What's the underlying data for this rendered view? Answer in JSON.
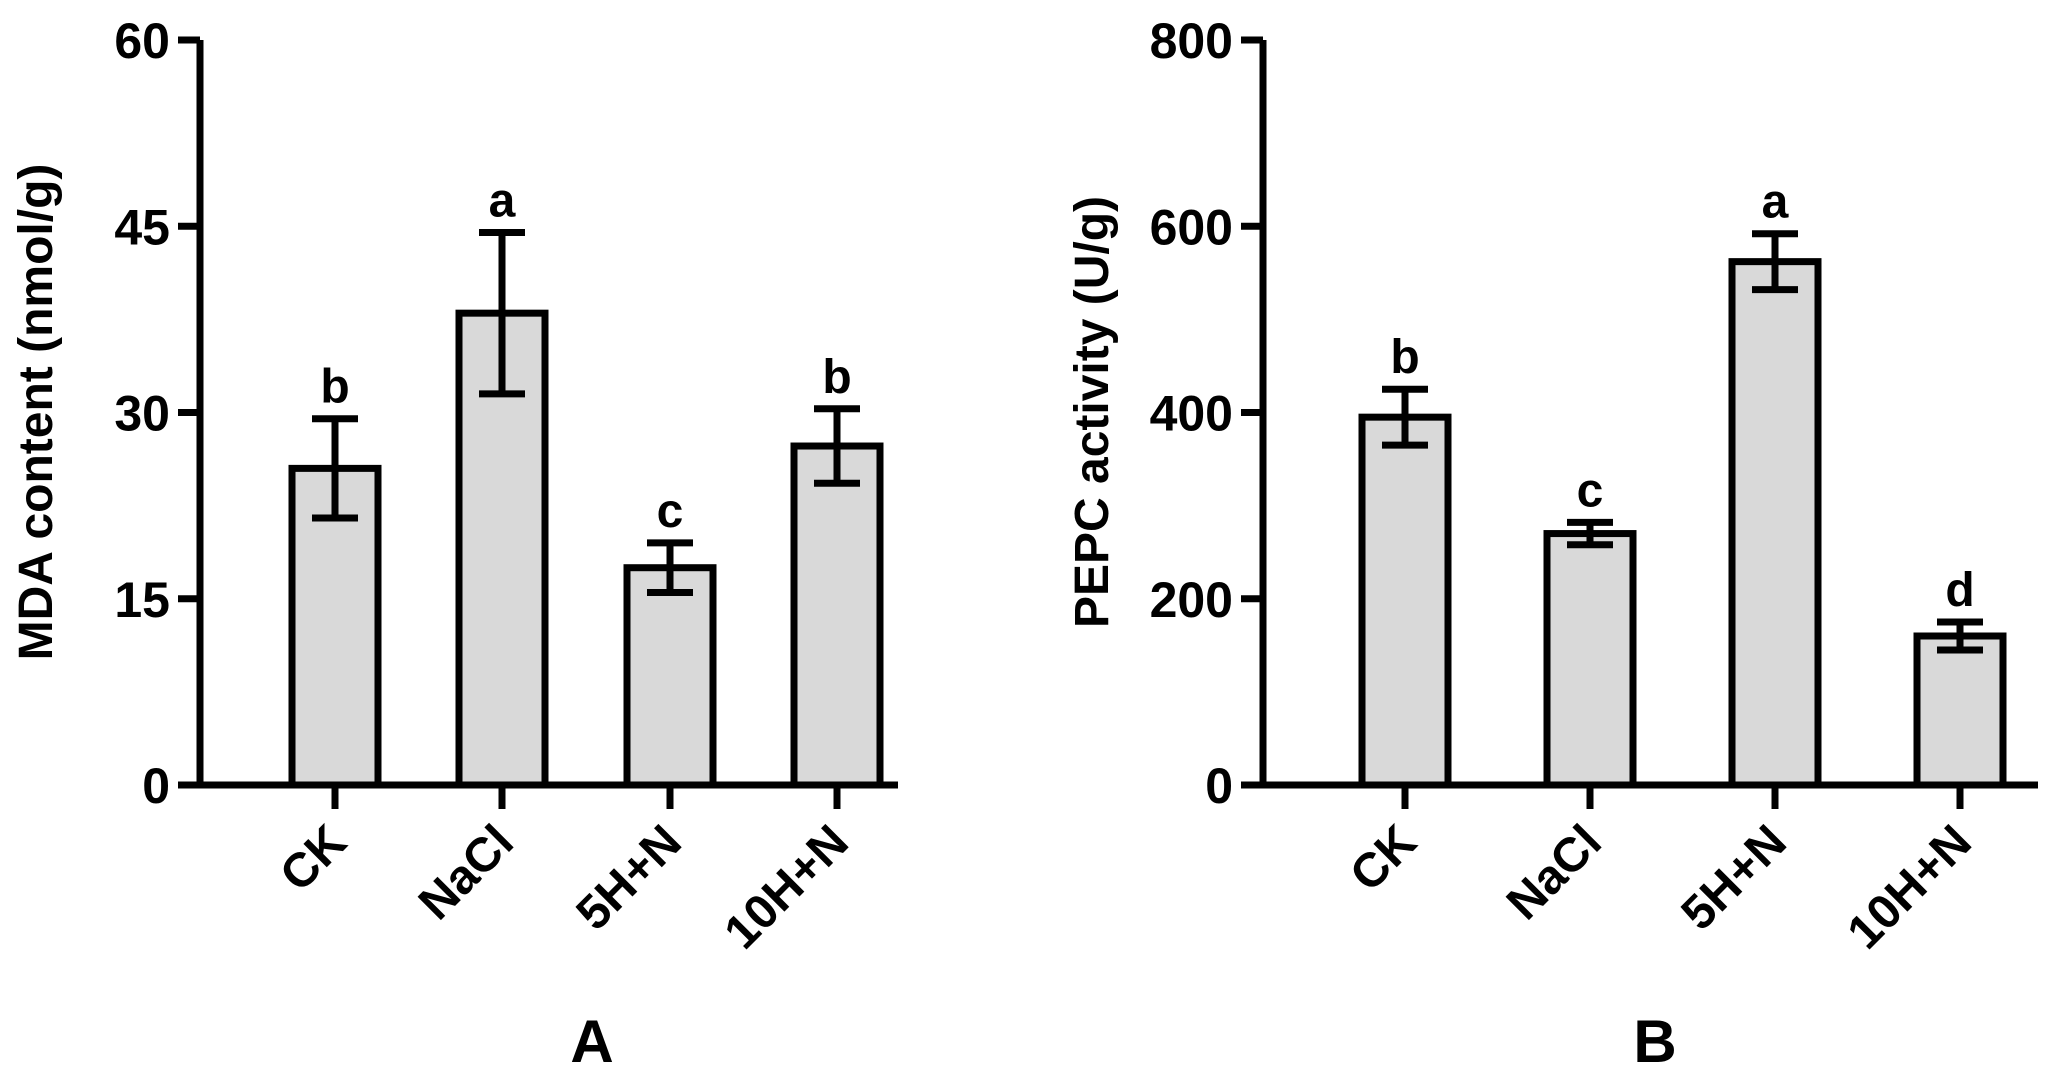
{
  "colors": {
    "bar_fill": "#d9d9d9",
    "stroke": "#000000",
    "background": "#ffffff"
  },
  "chart_data": [
    {
      "type": "bar",
      "panel_label": "A",
      "categories": [
        "CK",
        "NaCl",
        "5H+N",
        "10H+N"
      ],
      "values": [
        25.5,
        38.0,
        17.5,
        27.3
      ],
      "errors": [
        4.0,
        6.5,
        2.0,
        3.0
      ],
      "significance": [
        "b",
        "a",
        "c",
        "b"
      ],
      "ylabel": "MDA content (nmol/g)",
      "ylim": [
        0,
        60
      ],
      "yticks": [
        0,
        15,
        30,
        45,
        60
      ],
      "grid": false
    },
    {
      "type": "bar",
      "panel_label": "B",
      "categories": [
        "CK",
        "NaCl",
        "5H+N",
        "10H+N"
      ],
      "values": [
        395,
        270,
        562,
        160
      ],
      "errors": [
        30,
        12,
        30,
        15
      ],
      "significance": [
        "b",
        "c",
        "a",
        "d"
      ],
      "ylabel": "PEPC activity (U/g)",
      "ylim": [
        0,
        800
      ],
      "yticks": [
        0,
        200,
        400,
        600,
        800
      ],
      "grid": false
    }
  ]
}
